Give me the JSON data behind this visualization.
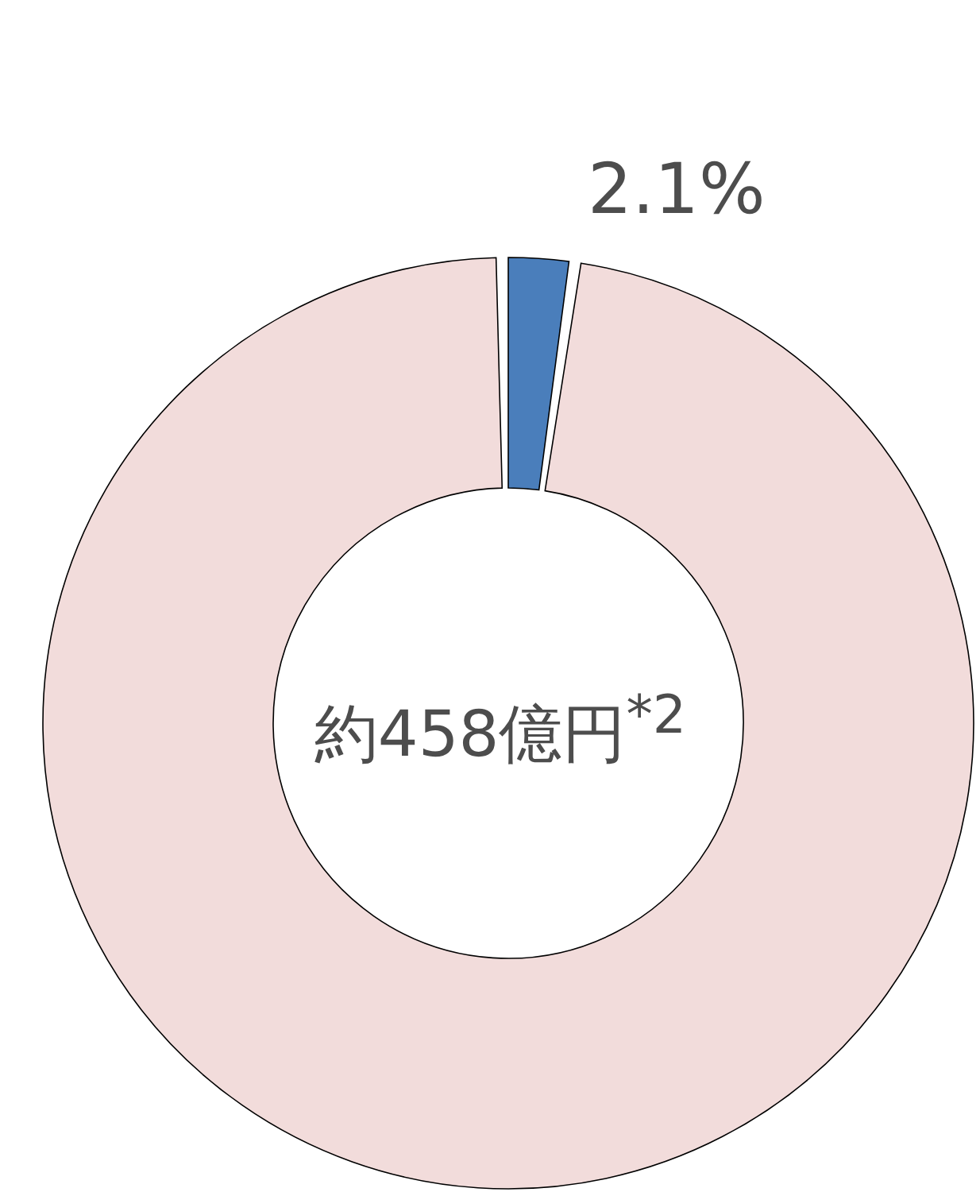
{
  "chart_data": {
    "type": "donut",
    "categories": [
      null,
      null
    ],
    "values": [
      2.1,
      97.9
    ],
    "colors": [
      "#4a7ebb",
      "#f2dcdb"
    ],
    "value_labels": [
      "2.1%",
      null
    ],
    "annotations": [
      "約458億円$^{*2}$"
    ]
  }
}
